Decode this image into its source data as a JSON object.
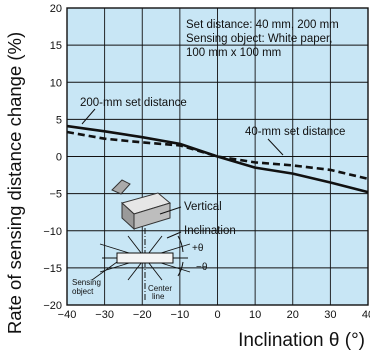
{
  "chart_data": {
    "type": "line",
    "xlabel": "Inclination θ (°)",
    "ylabel": "Rate of sensing distance change (%)",
    "xlim": [
      -40,
      40
    ],
    "ylim": [
      -20,
      20
    ],
    "xticks": [
      -40,
      -30,
      -20,
      -10,
      0,
      10,
      20,
      30,
      40
    ],
    "yticks": [
      -20,
      -15,
      -10,
      -5,
      0,
      5,
      10,
      15,
      20
    ],
    "xtick_labels": [
      "−40",
      "−30",
      "−20",
      "−10",
      "0",
      "10",
      "20",
      "30",
      "40"
    ],
    "ytick_labels": [
      "−20",
      "−15",
      "−10",
      "−5",
      "0",
      "5",
      "10",
      "15",
      "20"
    ],
    "grid": true,
    "plot_background": "#c8e6f5",
    "series": [
      {
        "name": "200-mm set distance",
        "style": "solid",
        "color": "#111111",
        "x": [
          -40,
          -30,
          -20,
          -10,
          0,
          10,
          20,
          30,
          40
        ],
        "y": [
          4.1,
          3.4,
          2.6,
          1.7,
          0.0,
          -1.5,
          -2.3,
          -3.5,
          -4.8
        ]
      },
      {
        "name": "40-mm set distance",
        "style": "dashed",
        "color": "#111111",
        "x": [
          -40,
          -30,
          -20,
          -10,
          0,
          10,
          20,
          30,
          40
        ],
        "y": [
          3.3,
          2.4,
          1.9,
          1.5,
          0.0,
          -0.8,
          -1.2,
          -1.8,
          -3.0
        ]
      }
    ],
    "annotations": {
      "info_box": [
        "Set distance: 40 mm, 200 mm",
        "Sensing object: White paper,",
        "100 mm x 100 mm"
      ],
      "label_200": "200-mm set distance",
      "label_40": "40-mm set distance",
      "vertical": "Vertical",
      "inclination": "Inclination",
      "plus_theta": "+θ",
      "minus_theta": "−θ",
      "sensing_object": [
        "Sensing",
        "object"
      ],
      "center_line": [
        "Center",
        "line"
      ]
    }
  }
}
